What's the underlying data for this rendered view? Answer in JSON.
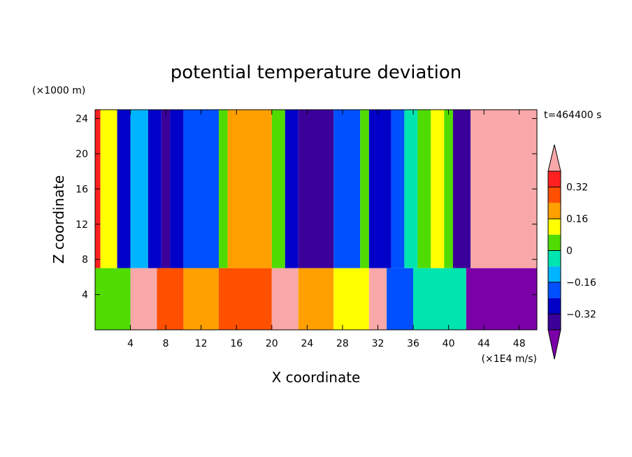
{
  "chart_data": {
    "type": "heatmap",
    "title": "potential temperature deviation",
    "xlabel": "X coordinate",
    "ylabel": "Z coordinate",
    "x_unit": "(×1E4 m/s)",
    "y_unit": "(×1000 m)",
    "time_label": "t=464400 s",
    "xlim": [
      0,
      50
    ],
    "ylim": [
      0,
      25
    ],
    "x_ticks": [
      4,
      8,
      12,
      16,
      20,
      24,
      28,
      32,
      36,
      40,
      44,
      48
    ],
    "y_ticks": [
      4,
      8,
      12,
      16,
      20,
      24
    ],
    "colorbar": {
      "levels": [
        -0.4,
        -0.32,
        -0.24,
        -0.16,
        -0.08,
        0,
        0.08,
        0.16,
        0.24,
        0.32,
        0.4
      ],
      "tick_labels": [
        "0.32",
        "0.16",
        "0",
        "−0.16",
        "−0.32"
      ],
      "tick_values": [
        0.32,
        0.16,
        0,
        -0.16,
        -0.32
      ],
      "colors": [
        "#7b00a8",
        "#3a0099",
        "#0000c8",
        "#0050ff",
        "#00b4ff",
        "#00e4b0",
        "#50dc00",
        "#ffff00",
        "#ffa000",
        "#ff5000",
        "#ff2020",
        "#f8a8a8"
      ]
    },
    "upper_layer_columns": [
      {
        "x0": 0,
        "x1": 0.6,
        "value": 0.36
      },
      {
        "x0": 0.6,
        "x1": 2.5,
        "value": 0.12
      },
      {
        "x0": 2.5,
        "x1": 4,
        "value": -0.28
      },
      {
        "x0": 4,
        "x1": 6,
        "value": -0.12
      },
      {
        "x0": 6,
        "x1": 7.5,
        "value": -0.28
      },
      {
        "x0": 7.5,
        "x1": 8.5,
        "value": -0.36
      },
      {
        "x0": 8.5,
        "x1": 10,
        "value": -0.28
      },
      {
        "x0": 10,
        "x1": 14,
        "value": -0.2
      },
      {
        "x0": 14,
        "x1": 15,
        "value": 0.04
      },
      {
        "x0": 15,
        "x1": 20,
        "value": 0.2
      },
      {
        "x0": 20,
        "x1": 21.5,
        "value": 0.04
      },
      {
        "x0": 21.5,
        "x1": 23,
        "value": -0.28
      },
      {
        "x0": 23,
        "x1": 27,
        "value": -0.36
      },
      {
        "x0": 27,
        "x1": 30,
        "value": -0.2
      },
      {
        "x0": 30,
        "x1": 31,
        "value": 0.04
      },
      {
        "x0": 31,
        "x1": 33.5,
        "value": -0.28
      },
      {
        "x0": 33.5,
        "x1": 35,
        "value": -0.2
      },
      {
        "x0": 35,
        "x1": 36.5,
        "value": -0.04
      },
      {
        "x0": 36.5,
        "x1": 38,
        "value": 0.04
      },
      {
        "x0": 38,
        "x1": 39.5,
        "value": 0.12
      },
      {
        "x0": 39.5,
        "x1": 40.5,
        "value": 0.04
      },
      {
        "x0": 40.5,
        "x1": 42.5,
        "value": -0.36
      },
      {
        "x0": 42.5,
        "x1": 50,
        "value": 0.5
      }
    ],
    "layer_boundary_z": 7,
    "lower_layer_columns": [
      {
        "x0": 0,
        "x1": 4,
        "value": 0.04
      },
      {
        "x0": 4,
        "x1": 7,
        "value": 0.5
      },
      {
        "x0": 7,
        "x1": 10,
        "value": 0.28
      },
      {
        "x0": 10,
        "x1": 14,
        "value": 0.2
      },
      {
        "x0": 14,
        "x1": 20,
        "value": 0.28
      },
      {
        "x0": 20,
        "x1": 23,
        "value": 0.5
      },
      {
        "x0": 23,
        "x1": 27,
        "value": 0.2
      },
      {
        "x0": 27,
        "x1": 31,
        "value": 0.12
      },
      {
        "x0": 31,
        "x1": 33,
        "value": 0.5
      },
      {
        "x0": 33,
        "x1": 36,
        "value": -0.2
      },
      {
        "x0": 36,
        "x1": 42,
        "value": -0.04
      },
      {
        "x0": 42,
        "x1": 50,
        "value": -0.5
      }
    ]
  }
}
